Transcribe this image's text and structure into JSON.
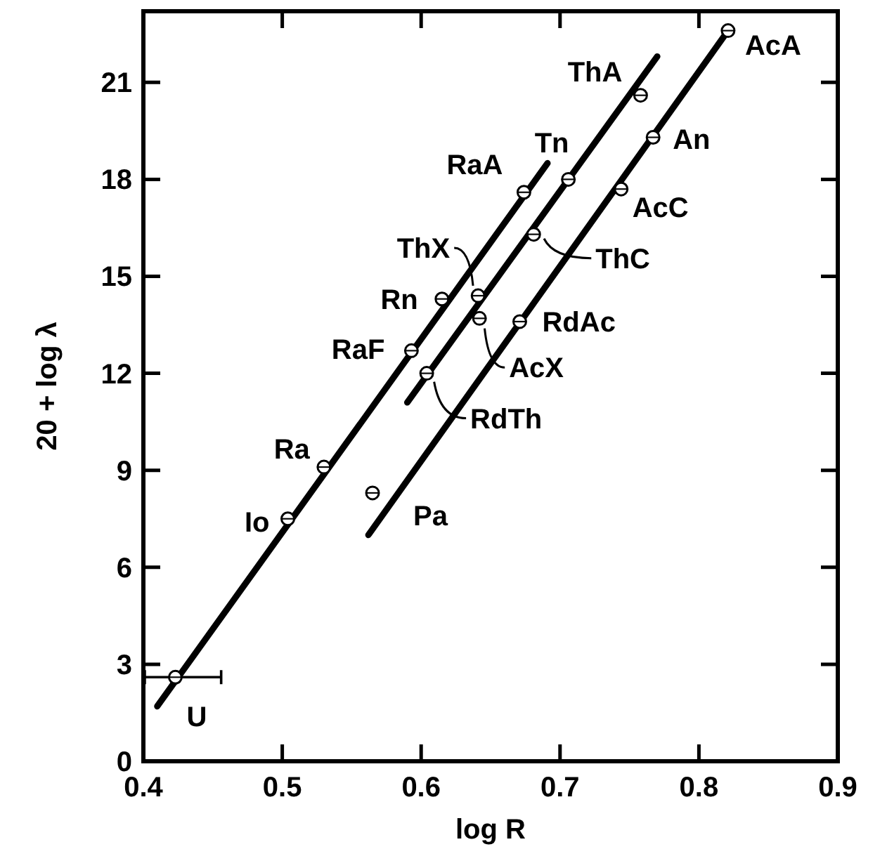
{
  "chart_data": {
    "type": "scatter",
    "xlabel": "log R",
    "ylabel": "20 + log λ",
    "xlim": [
      0.4,
      0.9
    ],
    "xticks": [
      0.4,
      0.5,
      0.6,
      0.7,
      0.8,
      0.9
    ],
    "ylim": [
      0,
      23.2
    ],
    "yticks": [
      0,
      3,
      6,
      9,
      12,
      15,
      18,
      21
    ],
    "grid": false,
    "series": [
      {
        "type": "line",
        "color": "#000000",
        "marker": "none",
        "line_style": "solid",
        "x": [
          0.41,
          0.691
        ],
        "values": [
          1.7,
          18.5
        ]
      },
      {
        "type": "line",
        "color": "#000000",
        "marker": "none",
        "line_style": "solid",
        "x": [
          0.59,
          0.77
        ],
        "values": [
          11.1,
          21.8
        ]
      },
      {
        "type": "line",
        "color": "#000000",
        "marker": "none",
        "line_style": "solid",
        "x": [
          0.562,
          0.821
        ],
        "values": [
          7.0,
          22.6
        ]
      },
      {
        "color": "#000000",
        "marker": "circle",
        "x": [
          0.423,
          0.504,
          0.53,
          0.565,
          0.593,
          0.615,
          0.641,
          0.642,
          0.604,
          0.671,
          0.681,
          0.674,
          0.706,
          0.744,
          0.767,
          0.758,
          0.821
        ],
        "values": [
          2.6,
          7.5,
          9.1,
          8.3,
          12.7,
          14.3,
          14.4,
          13.7,
          12.0,
          13.6,
          16.3,
          17.6,
          18.0,
          17.7,
          19.3,
          20.6,
          22.6
        ],
        "xerrors": [
          [
            0.401,
            0.456
          ],
          null,
          null,
          null,
          null,
          null,
          null,
          null,
          null,
          null,
          null,
          null,
          null,
          null,
          null,
          null,
          null
        ]
      }
    ],
    "annotations": [
      {
        "text": "U",
        "x": 0.423,
        "y": 2.6
      },
      {
        "text": "Io",
        "x": 0.504,
        "y": 7.5
      },
      {
        "text": "Ra",
        "x": 0.53,
        "y": 9.1
      },
      {
        "text": "Pa",
        "x": 0.565,
        "y": 8.3
      },
      {
        "text": "RaF",
        "x": 0.593,
        "y": 12.7
      },
      {
        "text": "Rn",
        "x": 0.615,
        "y": 14.3
      },
      {
        "text": "ThX",
        "x": 0.641,
        "y": 14.4
      },
      {
        "text": "AcX",
        "x": 0.642,
        "y": 13.7
      },
      {
        "text": "RdTh",
        "x": 0.604,
        "y": 12.0
      },
      {
        "text": "RdAc",
        "x": 0.671,
        "y": 13.6
      },
      {
        "text": "ThC",
        "x": 0.681,
        "y": 16.3
      },
      {
        "text": "RaA",
        "x": 0.674,
        "y": 17.6
      },
      {
        "text": "Tn",
        "x": 0.706,
        "y": 18.0
      },
      {
        "text": "AcC",
        "x": 0.744,
        "y": 17.7
      },
      {
        "text": "An",
        "x": 0.767,
        "y": 19.3
      },
      {
        "text": "ThA",
        "x": 0.758,
        "y": 20.6
      },
      {
        "text": "AcA",
        "x": 0.821,
        "y": 22.6
      }
    ]
  }
}
